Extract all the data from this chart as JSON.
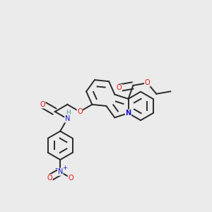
{
  "background_color": "#ebebeb",
  "bond_color": "#2a2a2a",
  "bond_width": 1.4,
  "dbo": 0.018,
  "atom_colors": {
    "O": "#ee1111",
    "N": "#1111cc",
    "H_color": "#4a9a9a"
  },
  "figsize": [
    3.0,
    3.0
  ],
  "dpi": 100
}
